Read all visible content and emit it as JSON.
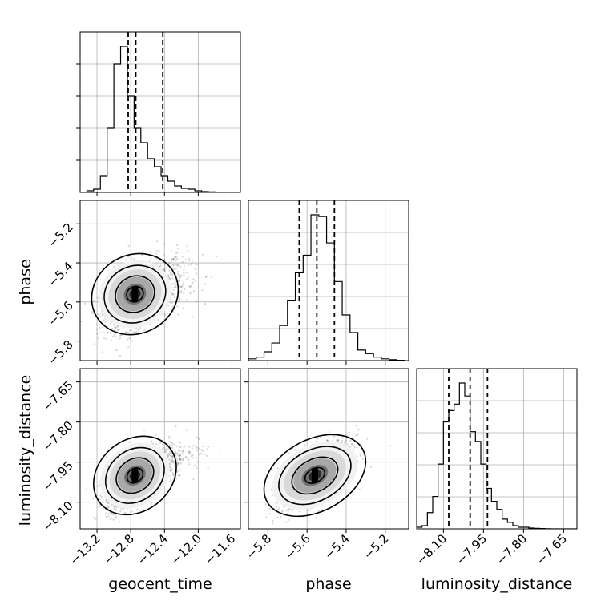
{
  "chart_data": {
    "type": "corner",
    "parameters": [
      "geocent_time",
      "phase",
      "luminosity_distance"
    ],
    "ranges": [
      [
        -13.4,
        -11.5
      ],
      [
        -5.9,
        -5.08
      ],
      [
        -8.2,
        -7.6
      ]
    ],
    "ticks": [
      {
        "values": [
          -13.2,
          -12.8,
          -12.4,
          -12.0,
          -11.6
        ],
        "labels": [
          "−13.2",
          "−12.8",
          "−12.4",
          "−12.0",
          "−11.6"
        ]
      },
      {
        "values": [
          -5.8,
          -5.6,
          -5.4,
          -5.2
        ],
        "labels": [
          "−5.8",
          "−5.6",
          "−5.4",
          "−5.2"
        ]
      },
      {
        "values": [
          -8.1,
          -7.95,
          -7.8,
          -7.65
        ],
        "labels": [
          "−8.10",
          "−7.95",
          "−7.80",
          "−7.65"
        ]
      }
    ],
    "quantiles": [
      [
        -12.83,
        -12.74,
        -12.42
      ],
      [
        -5.64,
        -5.55,
        -5.46
      ],
      [
        -8.08,
        -8.0,
        -7.935
      ]
    ],
    "histograms": [
      {
        "bins": [
          -13.32,
          -13.24,
          -13.16,
          -13.08,
          -13.0,
          -12.92,
          -12.84,
          -12.76,
          -12.68,
          -12.6,
          -12.52,
          -12.44,
          -12.36,
          -12.28,
          -12.2,
          -12.12,
          -12.04,
          -11.96,
          -11.88,
          -11.8,
          -11.72,
          -11.64,
          -11.56
        ],
        "counts": [
          0.01,
          0.02,
          0.1,
          0.4,
          0.8,
          0.91,
          0.6,
          0.4,
          0.31,
          0.21,
          0.16,
          0.1,
          0.07,
          0.04,
          0.025,
          0.02,
          0.01,
          0.005,
          0.003,
          0.002,
          0.001,
          0.0
        ]
      },
      {
        "bins": [
          -5.9,
          -5.86,
          -5.82,
          -5.78,
          -5.74,
          -5.7,
          -5.66,
          -5.62,
          -5.58,
          -5.54,
          -5.5,
          -5.46,
          -5.42,
          -5.38,
          -5.34,
          -5.3,
          -5.26,
          -5.22,
          -5.18,
          -5.14,
          -5.1
        ],
        "counts": [
          0.01,
          0.02,
          0.05,
          0.1,
          0.2,
          0.34,
          0.5,
          0.6,
          0.83,
          0.82,
          0.67,
          0.45,
          0.26,
          0.16,
          0.06,
          0.04,
          0.02,
          0.01,
          0.005,
          0.002
        ]
      },
      {
        "bins": [
          -8.2,
          -8.18,
          -8.16,
          -8.14,
          -8.12,
          -8.1,
          -8.08,
          -8.06,
          -8.04,
          -8.02,
          -8.0,
          -7.98,
          -7.96,
          -7.94,
          -7.92,
          -7.9,
          -7.88,
          -7.86,
          -7.84,
          -7.82,
          -7.8,
          -7.78,
          -7.76,
          -7.74,
          -7.72,
          -7.7,
          -7.68,
          -7.66,
          -7.64,
          -7.62,
          -7.6
        ],
        "counts": [
          0.01,
          0.02,
          0.1,
          0.2,
          0.4,
          0.66,
          0.73,
          0.77,
          0.9,
          0.82,
          0.6,
          0.54,
          0.4,
          0.25,
          0.17,
          0.12,
          0.06,
          0.04,
          0.02,
          0.01,
          0.01,
          0.005,
          0.003,
          0.002,
          0.001,
          0.0,
          0.0,
          0.0,
          0.0,
          0.0
        ]
      }
    ],
    "pairs": [
      {
        "x": 0,
        "y": 1,
        "mean": [
          -12.75,
          -5.56
        ],
        "sd": [
          0.17,
          0.09
        ],
        "rho": 0.45
      },
      {
        "x": 0,
        "y": 2,
        "mean": [
          -12.75,
          -8.0
        ],
        "sd": [
          0.17,
          0.06
        ],
        "rho": 0.7
      },
      {
        "x": 1,
        "y": 2,
        "mean": [
          -5.56,
          -8.0
        ],
        "sd": [
          0.09,
          0.06
        ],
        "rho": 0.6
      }
    ],
    "grid": true
  }
}
